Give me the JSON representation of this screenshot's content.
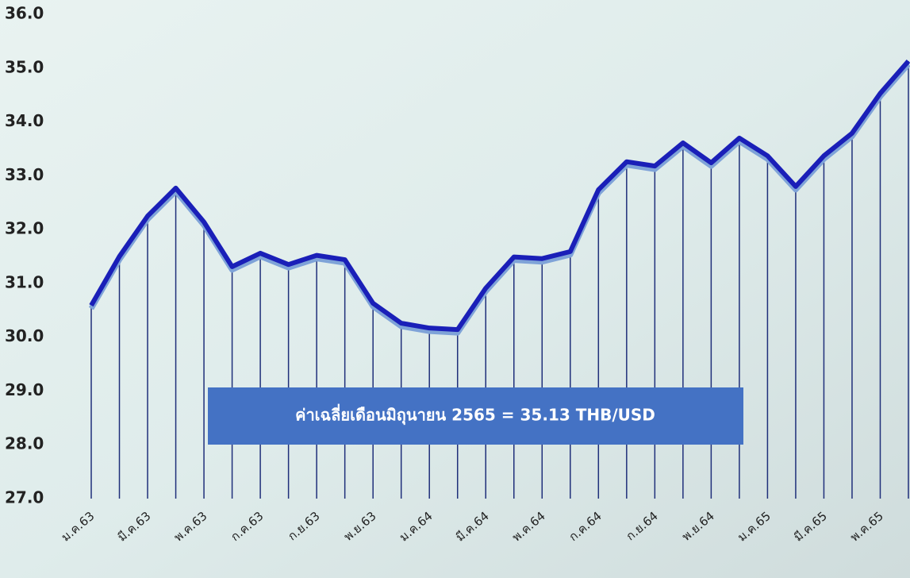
{
  "chart_data": {
    "type": "line",
    "annotation": "ค่าเฉลี่ยเดือนมิถุนายน 2565 = 35.13 THB/USD",
    "categories": [
      "ม.ค.63",
      null,
      "มี.ค.63",
      null,
      "พ.ค.63",
      null,
      "ก.ค.63",
      null,
      "ก.ย.63",
      null,
      "พ.ย.63",
      null,
      "ม.ค.64",
      null,
      "มี.ค.64",
      null,
      "พ.ค.64",
      null,
      "ก.ค.64",
      null,
      "ก.ย.64",
      null,
      "พ.ย.64",
      null,
      "ม.ค.65",
      null,
      "มี.ค.65",
      null,
      "พ.ค.65",
      null
    ],
    "values": [
      30.59,
      31.5,
      32.25,
      32.77,
      32.14,
      31.31,
      31.56,
      31.35,
      31.52,
      31.44,
      30.63,
      30.26,
      30.17,
      30.14,
      30.91,
      31.49,
      31.46,
      31.59,
      32.74,
      33.26,
      33.18,
      33.61,
      33.24,
      33.7,
      33.37,
      32.8,
      33.37,
      33.79,
      34.53,
      35.13
    ],
    "color": "#1a1fb8",
    "drop_line_color": "#1f2f7a",
    "ylim": [
      27,
      36
    ],
    "yticks": [
      {
        "value": 27,
        "label": "27.0"
      },
      {
        "value": 28,
        "label": "28.0"
      },
      {
        "value": 29,
        "label": "29.0"
      },
      {
        "value": 30,
        "label": "30.0"
      },
      {
        "value": 31,
        "label": "31.0"
      },
      {
        "value": 32,
        "label": "32.0"
      },
      {
        "value": 33,
        "label": "33.0"
      },
      {
        "value": 34,
        "label": "34.0"
      },
      {
        "value": 35,
        "label": "35.0"
      },
      {
        "value": 36,
        "label": "36.0"
      }
    ],
    "grid": false
  }
}
